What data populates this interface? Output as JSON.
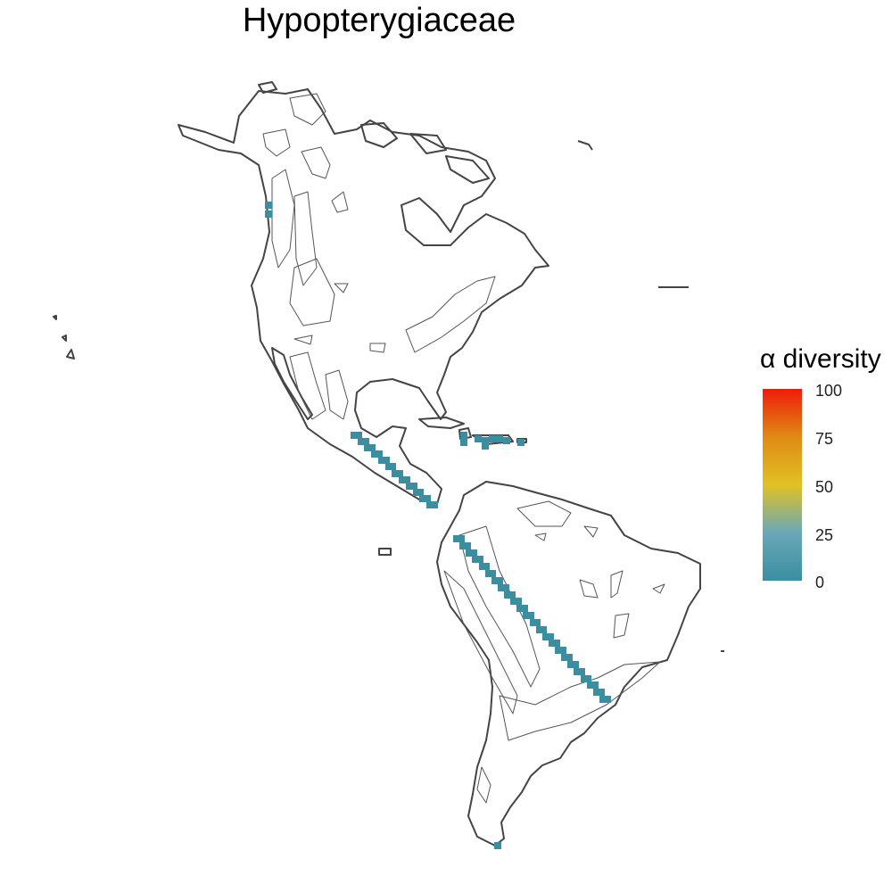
{
  "title": "Hypopterygiaceae",
  "legend": {
    "title": "α diversity",
    "ticks": [
      "100",
      "75",
      "50",
      "25",
      "0"
    ],
    "colors": [
      "#ee1c0a",
      "#e08a14",
      "#e0c224",
      "#6aa8b8",
      "#3a8ea0"
    ],
    "cell_color": "#3a8ea0"
  }
}
